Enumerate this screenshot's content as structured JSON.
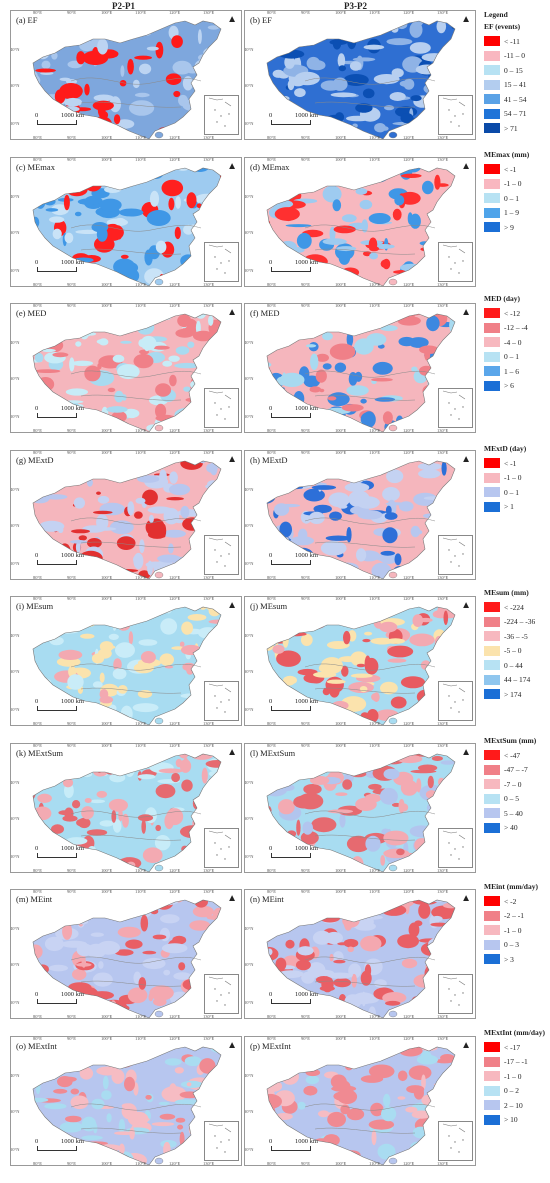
{
  "column_headers": [
    "P2-P1",
    "P3-P2"
  ],
  "tick_labels": {
    "top": [
      "80°E",
      "90°E",
      "100°E",
      "110°E",
      "120°E",
      "130°E"
    ],
    "bottom": [
      "80°E",
      "90°E",
      "100°E",
      "110°E",
      "120°E",
      "130°E"
    ],
    "left": [
      "40°N",
      "30°N",
      "20°N"
    ]
  },
  "scale_bar": {
    "zero": "0",
    "distance": "1000 km"
  },
  "panels": [
    {
      "label": "(a) EF",
      "colors": [
        "#7ea7dd",
        "#a9c6ec",
        "#ff1a1a",
        "#bcd4f2"
      ]
    },
    {
      "label": "(b) EF",
      "colors": [
        "#2f6fd2",
        "#0b4fb3",
        "#8fb3e6",
        "#b7cff0"
      ]
    },
    {
      "label": "(c) MEmax",
      "colors": [
        "#9ecbf0",
        "#ff2020",
        "#3f97e6",
        "#c9e3f7"
      ]
    },
    {
      "label": "(d) MEmax",
      "colors": [
        "#f7b8bf",
        "#9ecbf0",
        "#ff3030",
        "#3f97e6"
      ]
    },
    {
      "label": "(e) MED",
      "colors": [
        "#f5b6bd",
        "#a8daf0",
        "#f08088",
        "#c7ecf7"
      ]
    },
    {
      "label": "(f) MED",
      "colors": [
        "#f5b6bd",
        "#3d88e0",
        "#a8daf0",
        "#f08088"
      ]
    },
    {
      "label": "(g) MExtD",
      "colors": [
        "#f5b6bd",
        "#b7c7ef",
        "#e23030",
        "#c4d2f2"
      ]
    },
    {
      "label": "(h) MExtD",
      "colors": [
        "#f5b6bd",
        "#b7c7ef",
        "#2d6fd8",
        "#c4d2f2"
      ]
    },
    {
      "label": "(i) MEsum",
      "colors": [
        "#a8dcf1",
        "#fbe3ad",
        "#f3a9b1",
        "#c9ecf8"
      ]
    },
    {
      "label": "(j) MEsum",
      "colors": [
        "#a8dcf1",
        "#fbe3ad",
        "#f3a9b1",
        "#e85a60"
      ]
    },
    {
      "label": "(k) MExtSum",
      "colors": [
        "#a8dcf1",
        "#f3aab2",
        "#e66a70",
        "#c7ecf8"
      ]
    },
    {
      "label": "(l) MExtSum",
      "colors": [
        "#a8dcf1",
        "#f3aab2",
        "#e66a70",
        "#b2c5ee"
      ]
    },
    {
      "label": "(m) MEint",
      "colors": [
        "#b7c6ef",
        "#f4a8b0",
        "#e95f65",
        "#c8d3f3"
      ]
    },
    {
      "label": "(n) MEint",
      "colors": [
        "#b7c6ef",
        "#f4a8b0",
        "#e95f65",
        "#c8d3f3"
      ]
    },
    {
      "label": "(o) MExtInt",
      "colors": [
        "#b7c6ef",
        "#f08a92",
        "#f6bcc3",
        "#a9dcf1"
      ]
    },
    {
      "label": "(p) MExtInt",
      "colors": [
        "#b7c6ef",
        "#f08a92",
        "#f6bcc3",
        "#a9dcf1"
      ]
    }
  ],
  "legends": [
    {
      "title": "Legend",
      "subtitle": "EF (events)",
      "items": [
        {
          "label": "< -11",
          "color": "#ff0000"
        },
        {
          "label": "-11 – 0",
          "color": "#f9b7c0"
        },
        {
          "label": "0 – 15",
          "color": "#b7e2f3"
        },
        {
          "label": "15 – 41",
          "color": "#b3cdef"
        },
        {
          "label": "41 – 54",
          "color": "#5aa2e6"
        },
        {
          "label": "54 – 71",
          "color": "#1f74d8"
        },
        {
          "label": "> 71",
          "color": "#0a4aa8"
        }
      ]
    },
    {
      "title": "MEmax (mm)",
      "items": [
        {
          "label": "< -1",
          "color": "#ff0000"
        },
        {
          "label": "-1 – 0",
          "color": "#f9b7c0"
        },
        {
          "label": "0 – 1",
          "color": "#b7e2f3"
        },
        {
          "label": "1 – 9",
          "color": "#4fa4ea"
        },
        {
          "label": "> 9",
          "color": "#1b6fd6"
        }
      ]
    },
    {
      "title": "MED (day)",
      "items": [
        {
          "label": "< -12",
          "color": "#ff1a1a"
        },
        {
          "label": "-12 – -4",
          "color": "#f08088"
        },
        {
          "label": "-4 – 0",
          "color": "#f7b8bf"
        },
        {
          "label": "0 – 1",
          "color": "#b7e2f3"
        },
        {
          "label": "1 – 6",
          "color": "#5aa6ea"
        },
        {
          "label": "> 6",
          "color": "#1b6fd6"
        }
      ]
    },
    {
      "title": "MExtD (day)",
      "items": [
        {
          "label": "< -1",
          "color": "#ff0000"
        },
        {
          "label": "-1 – 0",
          "color": "#f7b8bf"
        },
        {
          "label": "0 – 1",
          "color": "#b7c6ef"
        },
        {
          "label": "> 1",
          "color": "#1b6fd6"
        }
      ]
    },
    {
      "title": "MEsum (mm)",
      "items": [
        {
          "label": "< -224",
          "color": "#ff1a1a"
        },
        {
          "label": "-224 – -36",
          "color": "#f08088"
        },
        {
          "label": "-36 – -5",
          "color": "#f7b8bf"
        },
        {
          "label": "-5 – 0",
          "color": "#fbe3ad"
        },
        {
          "label": "0 – 44",
          "color": "#b7e2f3"
        },
        {
          "label": "44 – 174",
          "color": "#8fc6ee"
        },
        {
          "label": "> 174",
          "color": "#1b6fd6"
        }
      ]
    },
    {
      "title": "MExtSum (mm)",
      "items": [
        {
          "label": "< -47",
          "color": "#ff1a1a"
        },
        {
          "label": "-47 – -7",
          "color": "#f08088"
        },
        {
          "label": "-7 – 0",
          "color": "#f7b8bf"
        },
        {
          "label": "0 – 5",
          "color": "#b7e2f3"
        },
        {
          "label": "5 – 40",
          "color": "#b7c6ef"
        },
        {
          "label": "> 40",
          "color": "#1b6fd6"
        }
      ]
    },
    {
      "title": "MEint (mm/day)",
      "items": [
        {
          "label": "< -2",
          "color": "#ff0000"
        },
        {
          "label": "-2 – -1",
          "color": "#f08088"
        },
        {
          "label": "-1 – 0",
          "color": "#f7b8bf"
        },
        {
          "label": "0 – 3",
          "color": "#b7c6ef"
        },
        {
          "label": "> 3",
          "color": "#1b6fd6"
        }
      ]
    },
    {
      "title": "MExtInt (mm/day)",
      "items": [
        {
          "label": "< -17",
          "color": "#ff0000"
        },
        {
          "label": "-17 – -1",
          "color": "#f08088"
        },
        {
          "label": "-1 – 0",
          "color": "#f7b8bf"
        },
        {
          "label": "0 – 2",
          "color": "#b7e2f3"
        },
        {
          "label": "2 – 10",
          "color": "#b7c6ef"
        },
        {
          "label": "> 10",
          "color": "#1b6fd6"
        }
      ]
    }
  ]
}
